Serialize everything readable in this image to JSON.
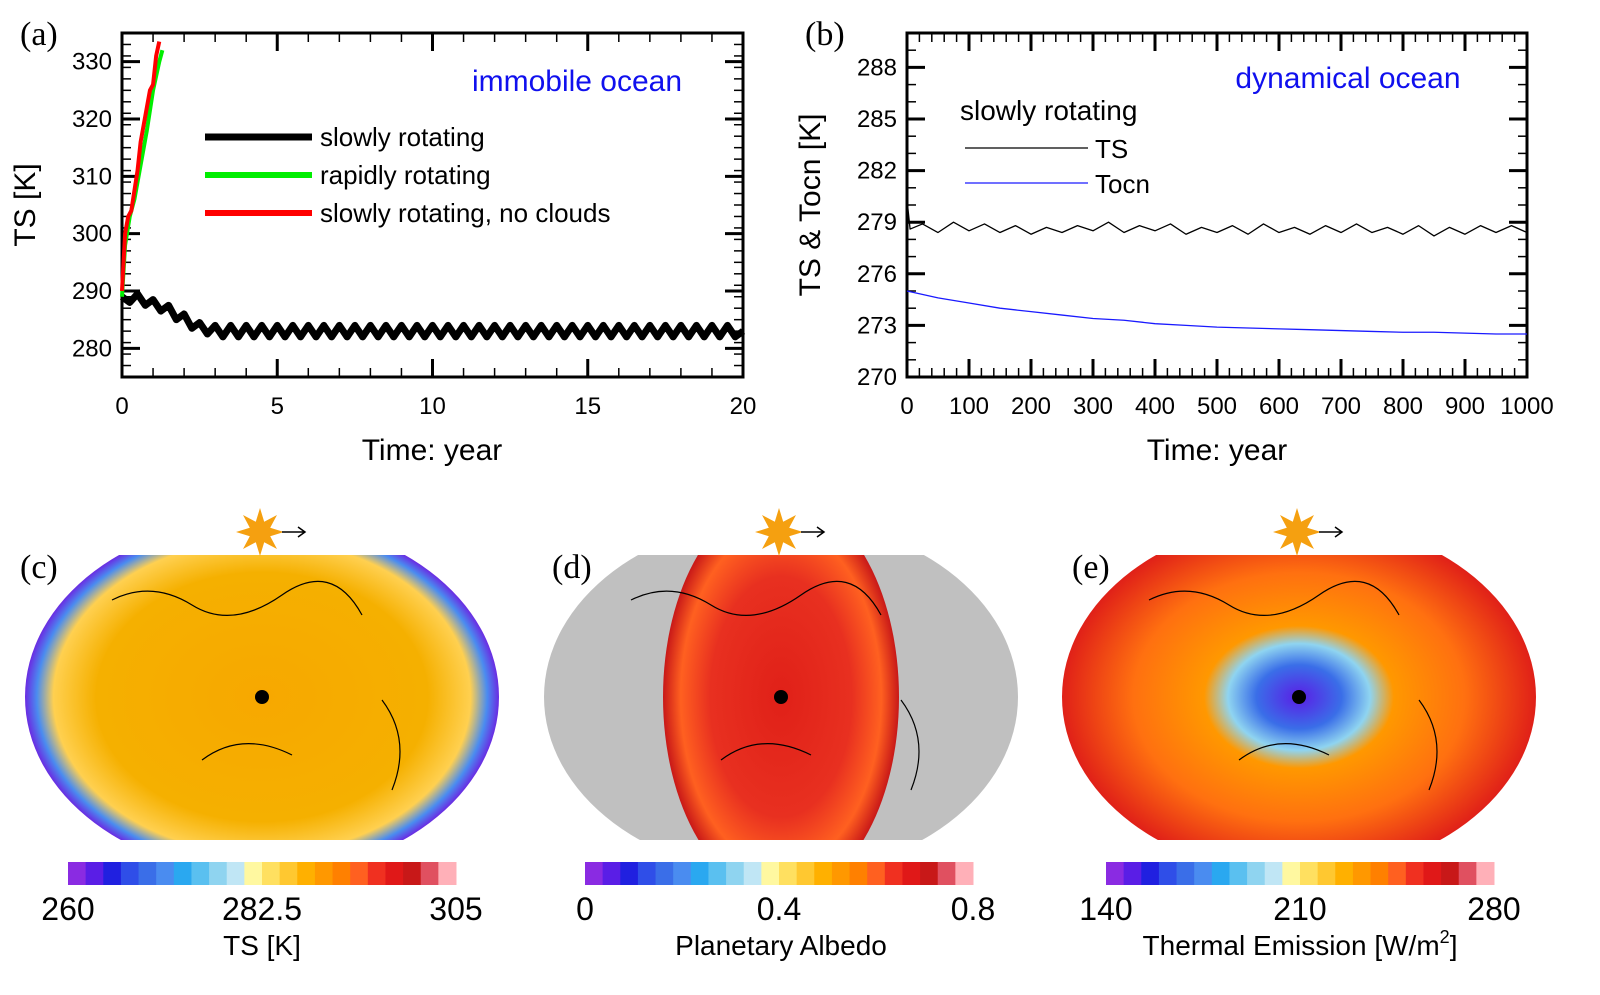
{
  "chart_data": [
    {
      "type": "line",
      "panel_label": "(a)",
      "annotation": "immobile ocean",
      "annotation_color": "#1010ee",
      "xlabel": "Time: year",
      "ylabel": "TS [K]",
      "xlim": [
        0,
        20
      ],
      "ylim": [
        275,
        335
      ],
      "xticks": [
        "0",
        "5",
        "10",
        "15",
        "20"
      ],
      "yticks": [
        "280",
        "290",
        "300",
        "310",
        "320",
        "330"
      ],
      "legend_placement": "top-center",
      "series": [
        {
          "name": "slowly rotating",
          "color": "#000000",
          "x": [
            0,
            0.25,
            0.5,
            0.75,
            1,
            1.25,
            1.5,
            1.75,
            2,
            2.25,
            2.5,
            2.75,
            3,
            3.25,
            3.5,
            3.75,
            4,
            4.25,
            4.5,
            4.75,
            5,
            5.25,
            5.5,
            5.75,
            6,
            6.25,
            6.5,
            6.75,
            7,
            7.25,
            7.5,
            7.75,
            8,
            8.25,
            8.5,
            8.75,
            9,
            9.25,
            9.5,
            9.75,
            10,
            10.25,
            10.5,
            10.75,
            11,
            11.25,
            11.5,
            11.75,
            12,
            12.25,
            12.5,
            12.75,
            13,
            13.25,
            13.5,
            13.75,
            14,
            14.25,
            14.5,
            14.75,
            15,
            15.25,
            15.5,
            15.75,
            16,
            16.25,
            16.5,
            16.75,
            17,
            17.25,
            17.5,
            17.75,
            18,
            18.25,
            18.5,
            18.75,
            19,
            19.25,
            19.5,
            19.75,
            20
          ],
          "y": [
            289,
            288,
            289.5,
            287.5,
            288.5,
            286.5,
            287.5,
            285,
            286,
            283.5,
            284.5,
            282.5,
            284,
            282,
            284,
            282,
            284,
            282,
            284,
            282,
            284,
            282,
            284,
            282,
            284,
            282,
            284,
            282,
            284,
            282,
            284,
            282,
            284,
            282,
            284,
            282,
            284,
            282,
            284,
            282,
            284,
            282,
            284,
            282,
            284,
            282,
            284,
            282,
            284,
            282,
            284,
            282,
            284,
            282,
            284,
            282,
            284,
            282,
            284,
            282,
            284,
            282,
            284,
            282,
            284,
            282,
            284,
            282,
            284,
            282,
            284,
            282,
            284,
            282,
            284,
            282,
            284,
            282,
            284,
            282,
            283
          ]
        },
        {
          "name": "rapidly rotating",
          "color": "#00ee00",
          "x": [
            0,
            0.1,
            0.25,
            0.4,
            0.6,
            0.8,
            1.0,
            1.2,
            1.3
          ],
          "y": [
            289,
            298,
            303,
            306,
            312,
            318,
            325,
            330,
            332
          ]
        },
        {
          "name": "slowly rotating, no clouds",
          "color": "#ff0000",
          "x": [
            0,
            0.1,
            0.2,
            0.3,
            0.5,
            0.6,
            0.8,
            0.9,
            1.0,
            1.1,
            1.2
          ],
          "y": [
            290,
            300,
            303,
            304,
            311,
            316,
            322,
            325,
            326,
            331,
            333.5
          ]
        }
      ]
    },
    {
      "type": "line",
      "panel_label": "(b)",
      "annotation": "dynamical ocean",
      "annotation_color": "#1010ee",
      "legend_title": "slowly rotating",
      "xlabel": "Time: year",
      "ylabel": "TS & Tocn [K]",
      "xlim": [
        0,
        1000
      ],
      "ylim": [
        270,
        290
      ],
      "xticks": [
        "0",
        "100",
        "200",
        "300",
        "400",
        "500",
        "600",
        "700",
        "800",
        "900",
        "1000"
      ],
      "yticks": [
        "270",
        "273",
        "276",
        "279",
        "282",
        "285",
        "288"
      ],
      "legend_placement": "top-left",
      "series": [
        {
          "name": "TS",
          "color": "#000000",
          "x": [
            0,
            5,
            25,
            50,
            75,
            100,
            125,
            150,
            175,
            200,
            225,
            250,
            275,
            300,
            325,
            350,
            375,
            400,
            425,
            450,
            475,
            500,
            525,
            550,
            575,
            600,
            625,
            650,
            675,
            700,
            725,
            750,
            775,
            800,
            825,
            850,
            875,
            900,
            925,
            950,
            975,
            1000
          ],
          "y": [
            280.3,
            278.6,
            278.9,
            278.4,
            279.0,
            278.5,
            278.9,
            278.4,
            278.8,
            278.3,
            278.7,
            278.4,
            278.8,
            278.5,
            279.0,
            278.4,
            278.8,
            278.5,
            278.9,
            278.3,
            278.7,
            278.4,
            278.8,
            278.3,
            278.9,
            278.4,
            278.7,
            278.3,
            278.8,
            278.4,
            278.9,
            278.4,
            278.7,
            278.3,
            278.8,
            278.2,
            278.7,
            278.3,
            278.8,
            278.4,
            278.8,
            278.4
          ]
        },
        {
          "name": "Tocn",
          "color": "#1a1aff",
          "x": [
            0,
            50,
            100,
            150,
            200,
            250,
            300,
            350,
            400,
            450,
            500,
            550,
            600,
            650,
            700,
            750,
            800,
            850,
            900,
            950,
            1000
          ],
          "y": [
            275.0,
            274.6,
            274.3,
            274.0,
            273.8,
            273.6,
            273.4,
            273.3,
            273.1,
            273.0,
            272.9,
            272.85,
            272.8,
            272.75,
            272.7,
            272.65,
            272.6,
            272.6,
            272.55,
            272.5,
            272.5
          ]
        }
      ]
    },
    {
      "type": "heatmap",
      "panel_label": "(c)",
      "colorbar_label": "TS [K]",
      "colorbar_ticks": [
        "260",
        "282.5",
        "305"
      ],
      "range": [
        260,
        305
      ]
    },
    {
      "type": "heatmap",
      "panel_label": "(d)",
      "colorbar_label": "Planetary Albedo",
      "colorbar_ticks": [
        "0",
        "0.4",
        "0.8"
      ],
      "range": [
        0,
        0.8
      ]
    },
    {
      "type": "heatmap",
      "panel_label": "(e)",
      "colorbar_label_main": "Thermal Emission [W/m",
      "colorbar_label_sup": "2",
      "colorbar_label_end": "]",
      "colorbar_ticks": [
        "140",
        "210",
        "280"
      ],
      "range": [
        140,
        280
      ]
    }
  ],
  "colormap": [
    "#8a2be2",
    "#5a1ee6",
    "#2020e0",
    "#2f4ee8",
    "#3a6ee8",
    "#4a8cf0",
    "#2aa8f0",
    "#5ac0f0",
    "#8fd4f0",
    "#c0e6f5",
    "#fff8a0",
    "#ffe060",
    "#ffc830",
    "#ffb000",
    "#ff9800",
    "#ff8000",
    "#ff6020",
    "#f03020",
    "#e01818",
    "#c81818",
    "#e05060",
    "#ffb0b8"
  ],
  "icons": {
    "star": "sun-icon",
    "arrow": "rotation-arrow-icon",
    "dot": "substellar-point-icon"
  }
}
